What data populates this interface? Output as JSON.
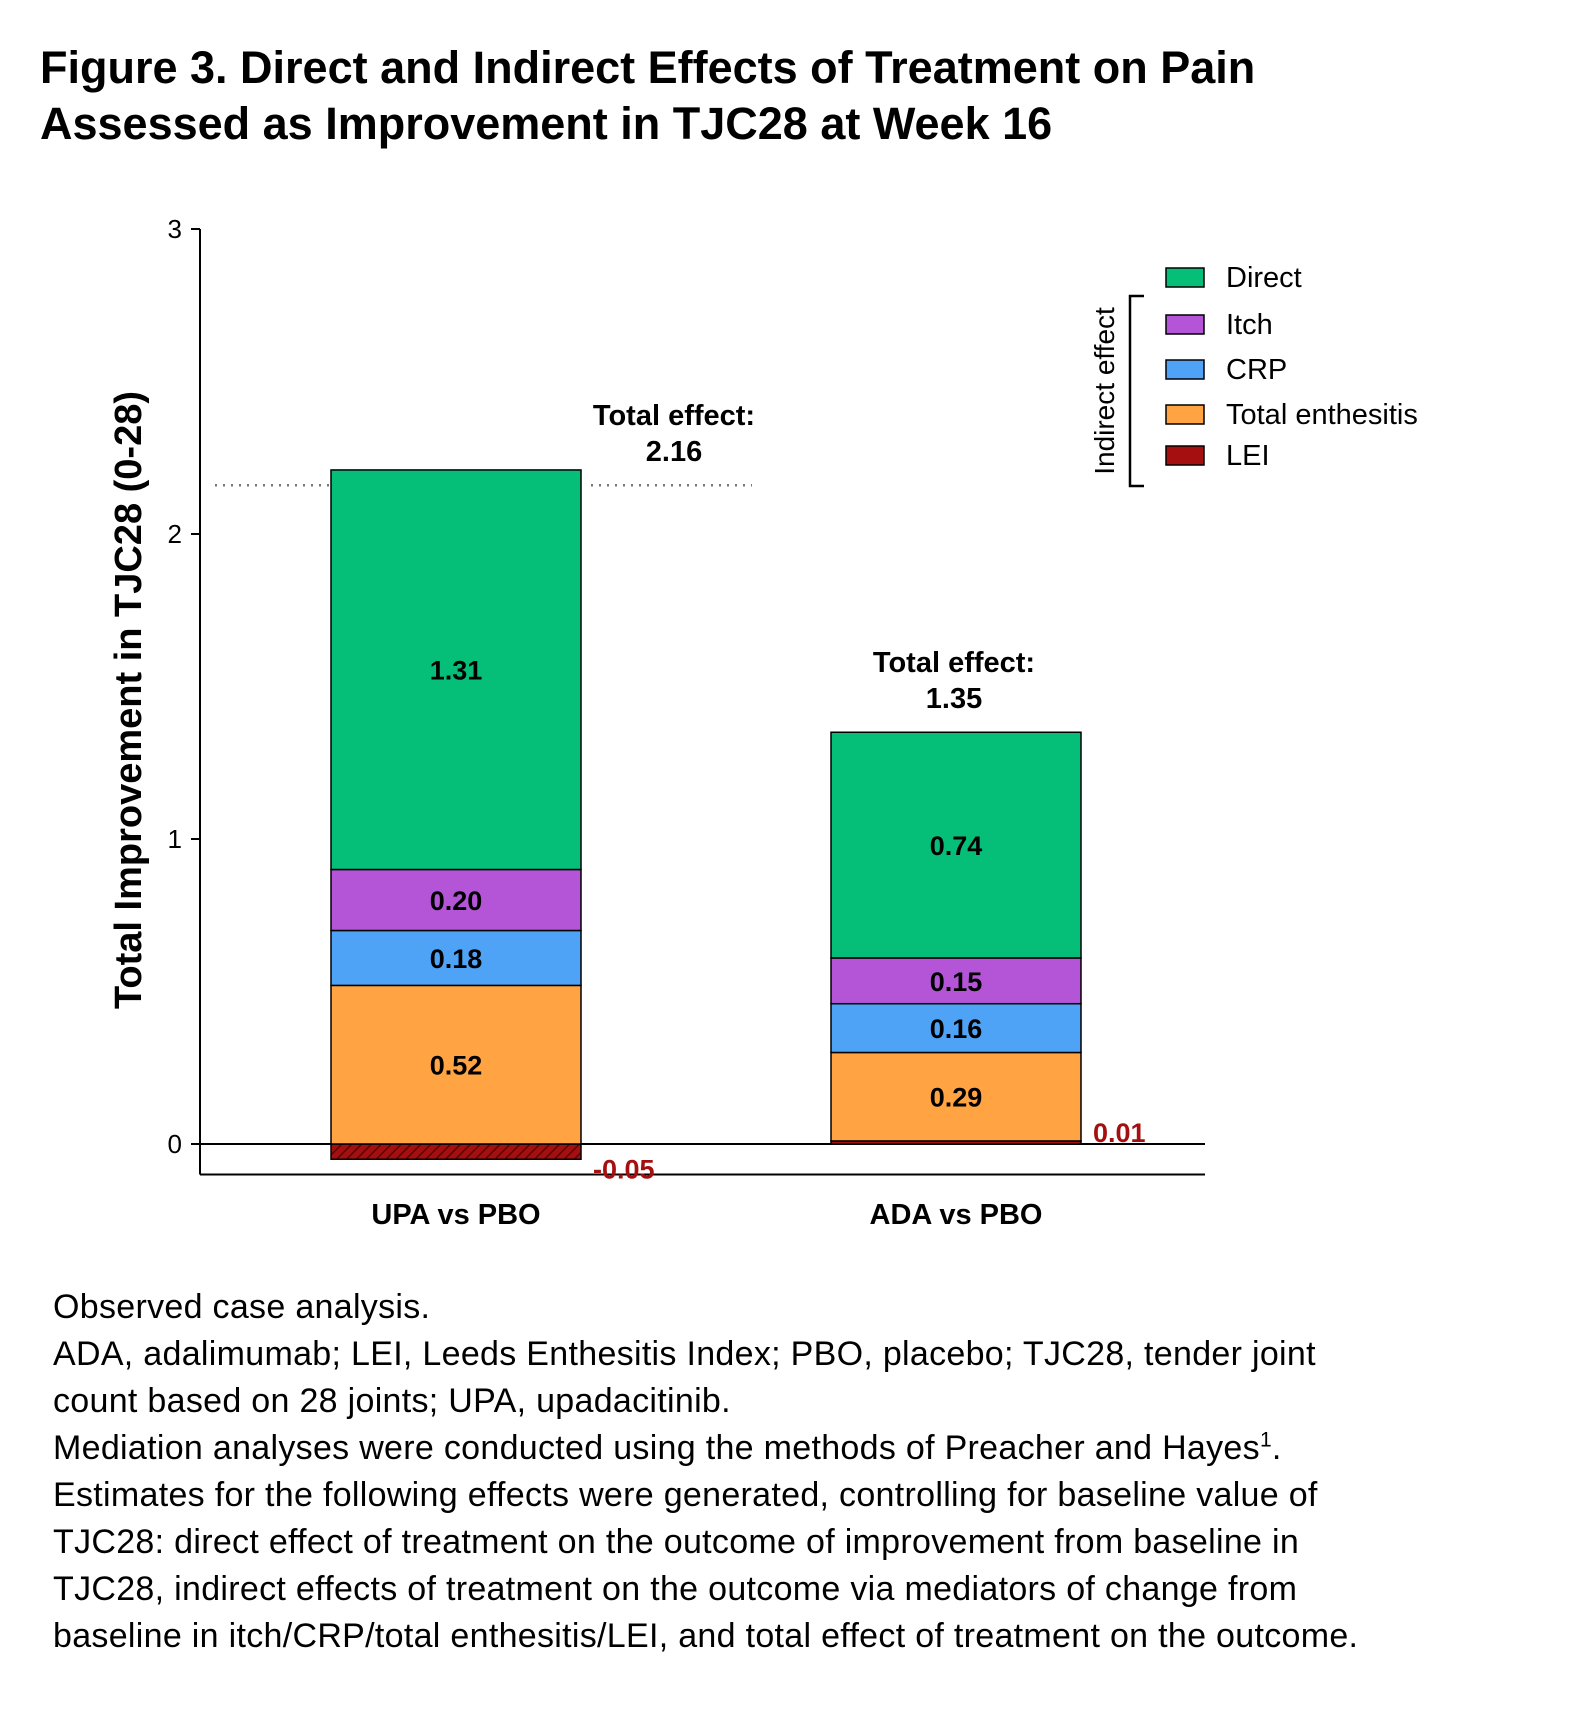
{
  "title": {
    "line1": "Figure 3. Direct and Indirect Effects of Treatment on Pain",
    "line2": "Assessed as Improvement in TJC28 at Week 16"
  },
  "chart_data": {
    "type": "bar",
    "stacked": true,
    "ylabel": "Total Improvement in TJC28 (0-28)",
    "xlabel": "",
    "ylim": [
      -0.1,
      3
    ],
    "yticks": [
      0,
      1,
      2,
      3
    ],
    "categories": [
      "UPA vs PBO",
      "ADA vs PBO"
    ],
    "series": [
      {
        "name": "LEI",
        "color": "#A50F0F",
        "values": [
          -0.05,
          0.01
        ],
        "labels": [
          "-0.05",
          "0.01"
        ]
      },
      {
        "name": "Total enthesitis",
        "color": "#FFA343",
        "values": [
          0.52,
          0.29
        ],
        "labels": [
          "0.52",
          "0.29"
        ]
      },
      {
        "name": "CRP",
        "color": "#4FA3F7",
        "values": [
          0.18,
          0.16
        ],
        "labels": [
          "0.18",
          "0.16"
        ]
      },
      {
        "name": "Itch",
        "color": "#B455D8",
        "values": [
          0.2,
          0.15
        ],
        "labels": [
          "0.20",
          "0.15"
        ]
      },
      {
        "name": "Direct",
        "color": "#05BF78",
        "values": [
          1.31,
          0.74
        ],
        "labels": [
          "1.31",
          "0.74"
        ]
      }
    ],
    "legend": {
      "position": "top-right",
      "order": [
        "Direct",
        "Itch",
        "CRP",
        "Total enthesitis",
        "LEI"
      ],
      "bracket_label": "Indirect effect"
    },
    "annotations": [
      {
        "category": "UPA vs PBO",
        "label": "Total effect:",
        "value": "2.16",
        "y": 2.16
      },
      {
        "category": "ADA vs PBO",
        "label": "Total effect:",
        "value": "1.35",
        "y": 1.35
      }
    ],
    "reference_line": {
      "y": 2.16,
      "style": "dotted"
    }
  },
  "notes": {
    "line1": "Observed case analysis.",
    "line2": "ADA, adalimumab; LEI, Leeds Enthesitis Index; PBO, placebo; TJC28, tender joint",
    "line3": "count based on 28 joints; UPA, upadacitinib.",
    "line4": "Mediation analyses were conducted using the methods of Preacher and Hayes",
    "line4_sup": "1",
    "line4_end": ".",
    "line5": "Estimates for the following effects were generated, controlling for baseline value of",
    "line6": "TJC28: direct effect of treatment on the outcome of improvement from baseline in",
    "line7": "TJC28, indirect effects of treatment on the outcome via mediators of change from",
    "line8": "baseline in itch/CRP/total enthesitis/LEI, and total effect of treatment on the outcome."
  }
}
